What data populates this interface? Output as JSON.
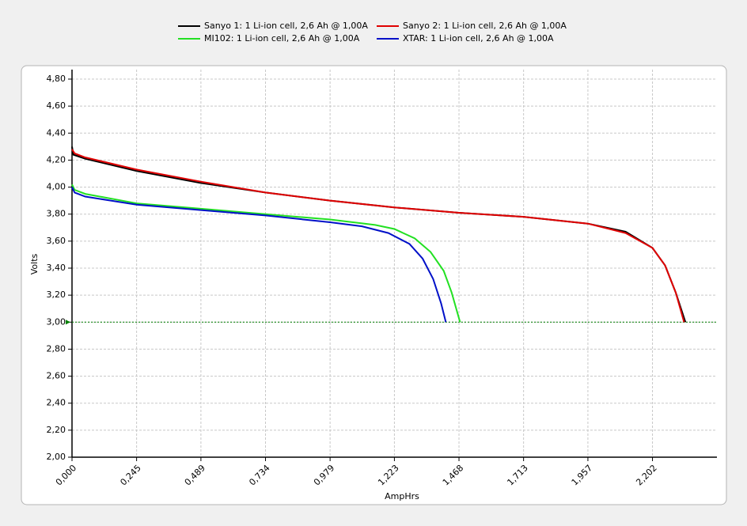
{
  "chart_data": {
    "type": "line",
    "x_label": "AmpHrs",
    "y_label": "Volts",
    "xlim": [
      0,
      2.4465
    ],
    "ylim": [
      2.0,
      4.8
    ],
    "xticks": [
      {
        "value": 0,
        "label": "0,000"
      },
      {
        "value": 0.245,
        "label": "0,245"
      },
      {
        "value": 0.489,
        "label": "0,489"
      },
      {
        "value": 0.734,
        "label": "0,734"
      },
      {
        "value": 0.979,
        "label": "0,979"
      },
      {
        "value": 1.223,
        "label": "1,223"
      },
      {
        "value": 1.468,
        "label": "1,468"
      },
      {
        "value": 1.713,
        "label": "1,713"
      },
      {
        "value": 1.957,
        "label": "1,957"
      },
      {
        "value": 2.202,
        "label": "2,202"
      }
    ],
    "yticks": [
      {
        "value": 2.0,
        "label": "2,00"
      },
      {
        "value": 2.2,
        "label": "2,20"
      },
      {
        "value": 2.4,
        "label": "2,40"
      },
      {
        "value": 2.6,
        "label": "2,60"
      },
      {
        "value": 2.8,
        "label": "2,80"
      },
      {
        "value": 3.0,
        "label": "3,00"
      },
      {
        "value": 3.2,
        "label": "3,20"
      },
      {
        "value": 3.4,
        "label": "3,40"
      },
      {
        "value": 3.6,
        "label": "3,60"
      },
      {
        "value": 3.8,
        "label": "3,80"
      },
      {
        "value": 4.0,
        "label": "4,00"
      },
      {
        "value": 4.2,
        "label": "4,20"
      },
      {
        "value": 4.4,
        "label": "4,40"
      },
      {
        "value": 4.6,
        "label": "4,60"
      },
      {
        "value": 4.8,
        "label": "4,80"
      }
    ],
    "grid": true,
    "reference_line": {
      "value": 3.0,
      "color": "#008000"
    },
    "series": [
      {
        "name": "Sanyo 1: 1 Li-ion cell, 2,6 Ah @ 1,00A",
        "color": "#000000",
        "x": [
          0,
          0.005,
          0.05,
          0.245,
          0.489,
          0.734,
          0.979,
          1.223,
          1.468,
          1.713,
          1.957,
          2.1,
          2.202,
          2.25,
          2.29,
          2.327
        ],
        "values": [
          4.3,
          4.24,
          4.21,
          4.12,
          4.03,
          3.96,
          3.9,
          3.85,
          3.81,
          3.78,
          3.73,
          3.67,
          3.55,
          3.42,
          3.22,
          3.0
        ]
      },
      {
        "name": "Sanyo 2: 1 Li-ion cell, 2,6 Ah @ 1,00A",
        "color": "#e00000",
        "x": [
          0,
          0.01,
          0.05,
          0.245,
          0.489,
          0.734,
          0.979,
          1.223,
          1.468,
          1.713,
          1.957,
          2.1,
          2.202,
          2.25,
          2.29,
          2.322
        ],
        "values": [
          4.28,
          4.25,
          4.22,
          4.13,
          4.04,
          3.96,
          3.9,
          3.85,
          3.81,
          3.78,
          3.73,
          3.66,
          3.55,
          3.42,
          3.22,
          3.0
        ]
      },
      {
        "name": "MI102: 1 Li-ion cell, 2,6 Ah @ 1,00A",
        "color": "#22e022",
        "x": [
          0,
          0.01,
          0.05,
          0.245,
          0.489,
          0.734,
          0.979,
          1.15,
          1.223,
          1.3,
          1.36,
          1.41,
          1.44,
          1.472
        ],
        "values": [
          4.02,
          3.98,
          3.95,
          3.88,
          3.84,
          3.8,
          3.76,
          3.72,
          3.69,
          3.62,
          3.52,
          3.38,
          3.22,
          3.0
        ]
      },
      {
        "name": "XTAR: 1 Li-ion cell, 2,6 Ah @ 1,00A",
        "color": "#0010c8",
        "x": [
          0,
          0.01,
          0.05,
          0.245,
          0.489,
          0.734,
          0.979,
          1.1,
          1.2,
          1.28,
          1.33,
          1.37,
          1.4,
          1.418
        ],
        "values": [
          4.0,
          3.96,
          3.93,
          3.87,
          3.83,
          3.79,
          3.74,
          3.71,
          3.66,
          3.58,
          3.47,
          3.32,
          3.14,
          3.0
        ]
      }
    ]
  }
}
